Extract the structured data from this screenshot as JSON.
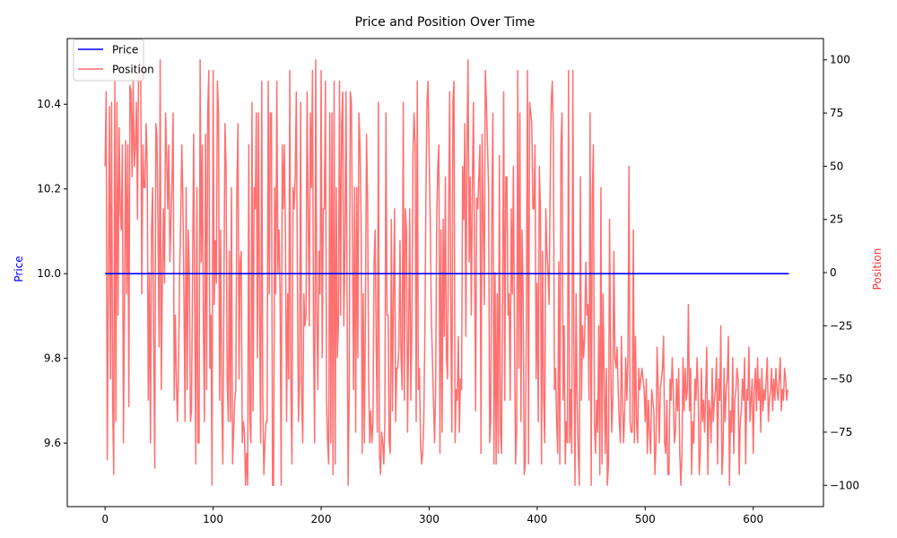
{
  "chart_data": {
    "type": "line",
    "title": "Price and Position Over Time",
    "xlabel": "",
    "xlim": [
      -35,
      665
    ],
    "xticks": [
      0,
      100,
      200,
      300,
      400,
      500,
      600
    ],
    "y_left": {
      "label": "Price",
      "label_color": "#0000ff",
      "ylim": [
        9.45,
        10.555
      ],
      "ticks": [
        9.6,
        9.8,
        10.0,
        10.2,
        10.4
      ]
    },
    "y_right": {
      "label": "Position",
      "label_color": "#ff3333",
      "ylim": [
        -110,
        110
      ],
      "ticks": [
        -100,
        -75,
        -50,
        -25,
        0,
        25,
        50,
        75,
        100
      ]
    },
    "legend": {
      "placement": "upper-left",
      "entries": [
        "Price",
        "Position"
      ]
    },
    "series": [
      {
        "name": "Price",
        "axis": "left",
        "color": "#0000ff",
        "x_start": 0,
        "x_end": 633,
        "constant_value": 10.0
      },
      {
        "name": "Position",
        "axis": "right",
        "color": "#ff3333",
        "opacity": 0.7,
        "x_start": 0,
        "values": [
          50,
          85,
          -88,
          -10,
          78,
          -50,
          80,
          -60,
          -95,
          90,
          -70,
          80,
          -20,
          68,
          30,
          20,
          60,
          -80,
          -10,
          62,
          -10,
          60,
          -63,
          88,
          85,
          45,
          90,
          50,
          60,
          80,
          25,
          95,
          100,
          95,
          -10,
          60,
          40,
          40,
          70,
          50,
          -60,
          0,
          -80,
          20,
          40,
          -35,
          -92,
          70,
          65,
          20,
          -35,
          100,
          -55,
          -5,
          30,
          -5,
          75,
          55,
          30,
          60,
          5,
          25,
          45,
          75,
          -60,
          -20,
          -50,
          -70,
          -45,
          0,
          25,
          60,
          35,
          -10,
          -70,
          40,
          -55,
          20,
          0,
          -70,
          -65,
          0,
          65,
          -20,
          -90,
          40,
          -80,
          -80,
          100,
          5,
          60,
          -25,
          -70,
          65,
          -55,
          75,
          95,
          -45,
          -20,
          -100,
          95,
          -15,
          15,
          -5,
          90,
          75,
          -60,
          20,
          -60,
          -90,
          -10,
          70,
          50,
          -50,
          -70,
          10,
          -70,
          40,
          -90,
          -75,
          -60,
          -55,
          40,
          70,
          -50,
          5,
          10,
          -80,
          -70,
          -75,
          -100,
          -85,
          -100,
          60,
          -70,
          -80,
          80,
          -65,
          40,
          30,
          75,
          -40,
          75,
          -20,
          -80,
          90,
          -60,
          -95,
          -80,
          -70,
          -70,
          90,
          -10,
          75,
          75,
          -100,
          -100,
          40,
          -10,
          90,
          0,
          20,
          -10,
          -100,
          60,
          30,
          60,
          15,
          -70,
          -10,
          -50,
          95,
          -55,
          -90,
          40,
          30,
          45,
          85,
          0,
          -70,
          -50,
          80,
          -60,
          -80,
          -10,
          -25,
          -20,
          85,
          30,
          -25,
          75,
          40,
          95,
          -35,
          -80,
          100,
          -20,
          -55,
          10,
          -10,
          95,
          -40,
          30,
          30,
          90,
          -60,
          -80,
          -90,
          75,
          -80,
          75,
          -95,
          90,
          -90,
          40,
          -40,
          -25,
          90,
          -20,
          70,
          85,
          -25,
          10,
          85,
          -10,
          -100,
          -55,
          85,
          80,
          15,
          -55,
          40,
          -75,
          40,
          -40,
          75,
          60,
          25,
          -85,
          -10,
          -80,
          -20,
          65,
          35,
          -50,
          -80,
          -65,
          -80,
          -70,
          5,
          20,
          -35,
          -75,
          80,
          -85,
          -95,
          -75,
          -80,
          -90,
          -70,
          75,
          -20,
          -20,
          -80,
          -85,
          25,
          -65,
          -10,
          30,
          -70,
          -45,
          -45,
          -35,
          15,
          -40,
          -55,
          80,
          -60,
          30,
          20,
          -75,
          -30,
          30,
          -60,
          -25,
          55,
          75,
          60,
          -70,
          90,
          -55,
          -45,
          -80,
          -90,
          -85,
          -70,
          -30,
          35,
          80,
          90,
          55,
          25,
          -20,
          -40,
          -60,
          -80,
          -55,
          25,
          50,
          60,
          -85,
          20,
          -75,
          25,
          -30,
          45,
          -40,
          -50,
          25,
          85,
          -20,
          -75,
          80,
          90,
          -80,
          -55,
          -60,
          -30,
          -75,
          -50,
          -55,
          50,
          25,
          70,
          -30,
          60,
          100,
          5,
          45,
          -20,
          40,
          80,
          10,
          -65,
          35,
          30,
          45,
          60,
          -85,
          65,
          25,
          -15,
          95,
          80,
          60,
          40,
          -80,
          -70,
          30,
          75,
          -90,
          0,
          -90,
          -10,
          -85,
          55,
          -75,
          -85,
          -10,
          85,
          -60,
          45,
          45,
          -20,
          -10,
          -60,
          30,
          -10,
          50,
          -30,
          -90,
          -75,
          95,
          -45,
          75,
          -70,
          20,
          -10,
          -95,
          -90,
          -20,
          95,
          -90,
          80,
          75,
          70,
          30,
          30,
          60,
          -50,
          -5,
          -70,
          50,
          30,
          -90,
          10,
          -60,
          -80,
          30,
          10,
          0,
          -15,
          40,
          80,
          90,
          65,
          -55,
          -45,
          -70,
          -85,
          5,
          -90,
          60,
          75,
          -60,
          -25,
          -90,
          -70,
          -80,
          95,
          -80,
          -55,
          -85,
          95,
          -35,
          -100,
          -10,
          -60,
          -85,
          -100,
          45,
          -60,
          -25,
          -40,
          -30,
          5,
          -20,
          -15,
          -60,
          75,
          -100,
          35,
          60,
          -70,
          -85,
          -60,
          -75,
          -25,
          -95,
          40,
          -90,
          -10,
          -50,
          -85,
          -45,
          -100,
          -90,
          25,
          -40,
          -75,
          -60,
          10,
          -40,
          -45,
          -35,
          -55,
          -70,
          -80,
          -30,
          -60,
          -80,
          -65,
          -40,
          -60,
          -40,
          50,
          -70,
          -75,
          -75,
          20,
          -80,
          -30,
          -70,
          -80,
          -45,
          -55,
          -50,
          -45,
          -50,
          -55,
          -70,
          -50,
          -85,
          -60,
          -75,
          -85,
          -55,
          -60,
          -65,
          -95,
          -80,
          -35,
          -55,
          -80,
          -55,
          -50,
          -45,
          -30,
          -80,
          -85,
          -60,
          -95,
          -95,
          -50,
          -60,
          -40,
          -55,
          -80,
          -75,
          -50,
          -65,
          -45,
          -85,
          -100,
          -85,
          -40,
          -65,
          -45,
          -60,
          -55,
          -15,
          -65,
          -45,
          -95,
          -70,
          -80,
          -50,
          -60,
          -40,
          -55,
          -95,
          -85,
          -45,
          -70,
          -60,
          -75,
          -55,
          -35,
          -95,
          -60,
          -65,
          -80,
          -45,
          -70,
          -60,
          -55,
          -40,
          -90,
          -50,
          -60,
          -25,
          -95,
          -85,
          -45,
          -70,
          -55,
          -50,
          -30,
          -100,
          -65,
          -75,
          -40,
          -85,
          -60,
          -55,
          -45,
          -50,
          -95,
          -70,
          -65,
          -50,
          -60,
          -40,
          -90,
          -55,
          -60,
          -35,
          -70,
          -60,
          -50,
          -85,
          -55,
          -45,
          -65,
          -40,
          -60,
          -50,
          -75,
          -45,
          -65,
          -55,
          -60,
          -50,
          -40,
          -70,
          -60,
          -55,
          -45,
          -65,
          -50,
          -60,
          -45,
          -55,
          -60,
          -50,
          -40,
          -65,
          -55,
          -60,
          -45,
          -50,
          -60,
          -55
        ]
      }
    ]
  }
}
